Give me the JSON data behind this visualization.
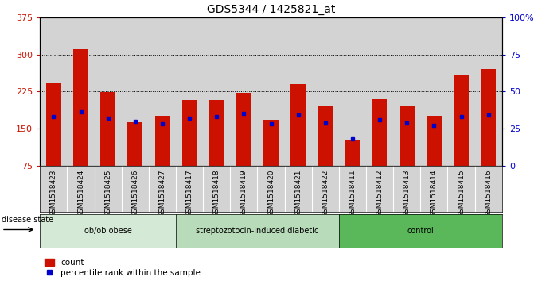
{
  "title": "GDS5344 / 1425821_at",
  "samples": [
    "GSM1518423",
    "GSM1518424",
    "GSM1518425",
    "GSM1518426",
    "GSM1518427",
    "GSM1518417",
    "GSM1518418",
    "GSM1518419",
    "GSM1518420",
    "GSM1518421",
    "GSM1518422",
    "GSM1518411",
    "GSM1518412",
    "GSM1518413",
    "GSM1518414",
    "GSM1518415",
    "GSM1518416"
  ],
  "counts": [
    242,
    311,
    224,
    163,
    175,
    208,
    208,
    222,
    168,
    240,
    195,
    128,
    210,
    195,
    175,
    258,
    270
  ],
  "percentile_ranks": [
    33,
    36,
    32,
    30,
    28,
    32,
    33,
    35,
    28,
    34,
    29,
    18,
    31,
    29,
    27,
    33,
    34
  ],
  "groups": [
    {
      "label": "ob/ob obese",
      "start": 0,
      "end": 5,
      "color": "#d5ead6"
    },
    {
      "label": "streptozotocin-induced diabetic",
      "start": 5,
      "end": 11,
      "color": "#b8dbb9"
    },
    {
      "label": "control",
      "start": 11,
      "end": 17,
      "color": "#5ab85a"
    }
  ],
  "ylim_left": [
    75,
    375
  ],
  "ylim_right": [
    0,
    100
  ],
  "yticks_left": [
    75,
    150,
    225,
    300,
    375
  ],
  "yticks_right": [
    0,
    25,
    50,
    75,
    100
  ],
  "bar_color": "#cc1100",
  "marker_color": "#0000cc",
  "cell_bg": "#d3d3d3",
  "title_fontsize": 10,
  "tick_fontsize": 6.5,
  "bar_width": 0.55
}
